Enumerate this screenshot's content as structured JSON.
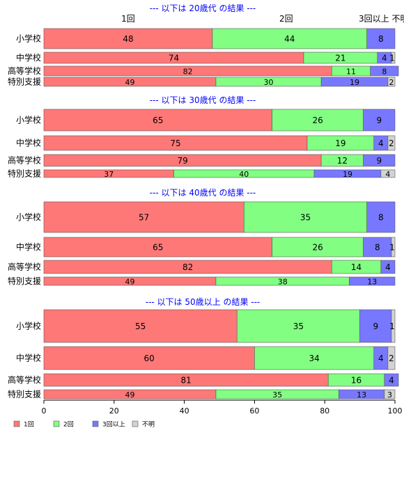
{
  "chart_data": {
    "type": "bar",
    "orientation": "horizontal",
    "stacked": true,
    "xlim": [
      0,
      100
    ],
    "x_ticks": [
      0,
      20,
      40,
      60,
      80,
      100
    ],
    "colors": {
      "s1": "#ff7878",
      "s2": "#82ff82",
      "s3": "#7878ff",
      "s4": "#d3d3d3"
    },
    "legend": {
      "placement": "bottom-left",
      "labels": [
        "1回",
        "2回",
        "3回以上",
        "不明"
      ]
    },
    "top_labels": [
      {
        "text": "1回",
        "x": 24
      },
      {
        "text": "2回",
        "x": 69
      },
      {
        "text": "3回以上",
        "x": 94
      },
      {
        "text": "不明",
        "x": 101.5
      }
    ],
    "panels": [
      {
        "title": "--- 以下は 20歳代 の結果 ---",
        "rows": [
          {
            "label": "小学校",
            "values": [
              48,
              44,
              8,
              0
            ]
          },
          {
            "label": "中学校",
            "values": [
              74,
              21,
              4,
              1
            ]
          },
          {
            "label": "高等学校",
            "values": [
              82,
              11,
              8,
              0
            ]
          },
          {
            "label": "特別支援",
            "values": [
              49,
              30,
              19,
              2
            ]
          }
        ]
      },
      {
        "title": "--- 以下は 30歳代 の結果 ---",
        "rows": [
          {
            "label": "小学校",
            "values": [
              65,
              26,
              9,
              0
            ]
          },
          {
            "label": "中学校",
            "values": [
              75,
              19,
              4,
              2
            ]
          },
          {
            "label": "高等学校",
            "values": [
              79,
              12,
              9,
              0
            ]
          },
          {
            "label": "特別支援",
            "values": [
              37,
              40,
              19,
              4
            ]
          }
        ]
      },
      {
        "title": "--- 以下は 40歳代 の結果 ---",
        "rows": [
          {
            "label": "小学校",
            "values": [
              57,
              35,
              8,
              0
            ]
          },
          {
            "label": "中学校",
            "values": [
              65,
              26,
              8,
              1
            ]
          },
          {
            "label": "高等学校",
            "values": [
              82,
              14,
              4,
              0
            ]
          },
          {
            "label": "特別支援",
            "values": [
              49,
              38,
              13,
              0
            ]
          }
        ]
      },
      {
        "title": "--- 以下は 50歳以上 の結果 ---",
        "rows": [
          {
            "label": "小学校",
            "values": [
              55,
              35,
              9,
              1
            ]
          },
          {
            "label": "中学校",
            "values": [
              60,
              34,
              4,
              2
            ]
          },
          {
            "label": "高等学校",
            "values": [
              81,
              16,
              4,
              0
            ]
          },
          {
            "label": "特別支援",
            "values": [
              49,
              35,
              13,
              3
            ]
          }
        ]
      }
    ]
  }
}
